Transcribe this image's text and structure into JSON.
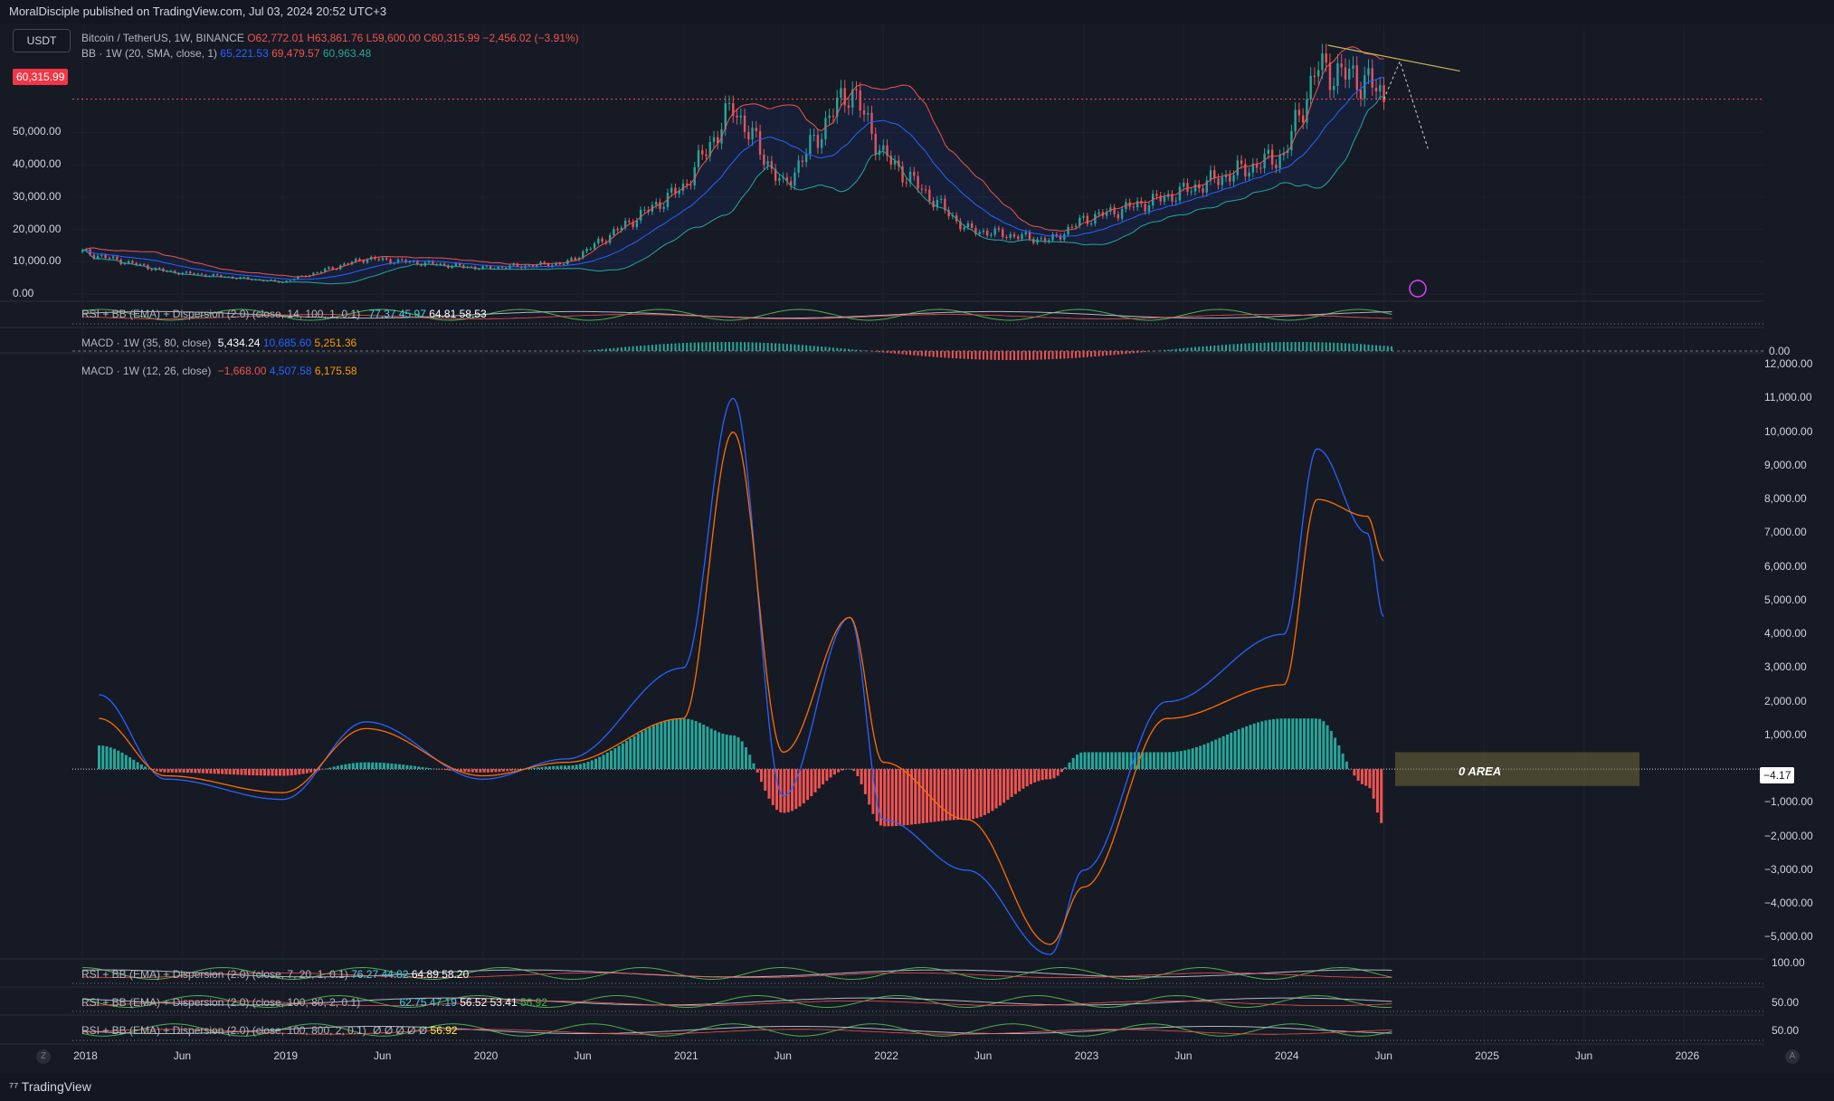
{
  "header": {
    "published": "MoralDisciple published on TradingView.com, Jul 03, 2024 20:52 UTC+3"
  },
  "symbol_box": "USDT",
  "main_legend": {
    "title": "Bitcoin / TetherUS, 1W, BINANCE",
    "o_label": "O",
    "o": "62,772.01",
    "h_label": "H",
    "h": "63,861.76",
    "l_label": "L",
    "l": "59,600.00",
    "c_label": "C",
    "c": "60,315.99",
    "change": "−2,456.02 (−3.91%)",
    "bb_title": "BB · 1W (20, SMA, close, 1)",
    "bb_basis": "65,221.53",
    "bb_upper": "69,479.57",
    "bb_lower": "60,963.48"
  },
  "last_price_tag": "60,315.99",
  "price_axis": [
    "50,000.00",
    "40,000.00",
    "30,000.00",
    "20,000.00",
    "10,000.00",
    "0.00"
  ],
  "rsi1": {
    "title": "RSI + BB (EMA) + Dispersion (2.0) (close, 14, 100, 1, 0.1)",
    "v1": "77.37",
    "v2": "45.97",
    "v3": "64.81",
    "v4": "58.53"
  },
  "macd_small": {
    "title": "MACD · 1W (35, 80, close)",
    "v1": "5,434.24",
    "v2": "10,685.60",
    "v3": "5,251.36",
    "axis": "0.00"
  },
  "macd_big": {
    "title": "MACD · 1W (12, 26, close)",
    "hist": "−1,668.00",
    "macd": "4,507.58",
    "signal": "6,175.58"
  },
  "macd_axis": [
    "12,000.00",
    "11,000.00",
    "10,000.00",
    "9,000.00",
    "8,000.00",
    "7,000.00",
    "6,000.00",
    "5,000.00",
    "4,000.00",
    "3,000.00",
    "2,000.00",
    "1,000.00",
    "−1,000.00",
    "−2,000.00",
    "−3,000.00",
    "−4,000.00",
    "−5,000.00"
  ],
  "macd_value_tag": "−4.17",
  "zero_area_label": "0 AREA",
  "rsi2": {
    "title": "RSI + BB (EMA) + Dispersion (2.0) (close, 7, 20, 1, 0.1)",
    "v1": "76.27",
    "v2": "44.82",
    "v3": "64.89",
    "v4": "58.20",
    "axis": "100.00"
  },
  "rsi3": {
    "title": "RSI + BB (EMA) + Dispersion (2.0) (close, 100, 80, 2, 0.1)",
    "v1": "62.75",
    "v2": "47.19",
    "v3": "56.52",
    "v4": "53.41",
    "v5": "56.92",
    "axis": "50.00"
  },
  "rsi4": {
    "title": "RSI + BB (EMA) + Dispersion (2.0) (close, 100, 800, 2, 0.1)",
    "v0": "Ø Ø Ø Ø Ø",
    "v5": "56.92",
    "axis": "50.00"
  },
  "time_axis": [
    "2018",
    "Jun",
    "2019",
    "Jun",
    "2020",
    "Jun",
    "2021",
    "Jun",
    "2022",
    "Jun",
    "2023",
    "Jun",
    "2024",
    "Jun",
    "2025",
    "Jun",
    "2026"
  ],
  "footer": {
    "brand": "TradingView",
    "left_btn": "Z",
    "right_btn": "A"
  },
  "colors": {
    "up": "#26a69a",
    "down": "#ef5350",
    "macd": "#2962ff",
    "signal": "#ff6d00",
    "bb": "#2962ff",
    "background": "#161a25"
  },
  "chart_data": [
    {
      "type": "candlestick",
      "title": "Bitcoin / TetherUS, 1W, BINANCE",
      "x": [
        "2018-01",
        "2018-06",
        "2019-01",
        "2019-06",
        "2020-01",
        "2020-06",
        "2021-01",
        "2021-04",
        "2021-07",
        "2021-11",
        "2022-01",
        "2022-06",
        "2022-11",
        "2023-01",
        "2023-06",
        "2024-01",
        "2024-03",
        "2024-06",
        "2024-07"
      ],
      "close": [
        13000,
        7000,
        3700,
        11000,
        8000,
        9500,
        33000,
        58000,
        33000,
        64000,
        43000,
        20000,
        16500,
        23000,
        30000,
        43000,
        70000,
        66000,
        60316
      ],
      "ylim": [
        0,
        70000
      ],
      "series": [
        {
          "name": "BB basis",
          "value_last": 65221.53
        },
        {
          "name": "BB upper",
          "value_last": 69479.57
        },
        {
          "name": "BB lower",
          "value_last": 60963.48
        }
      ]
    },
    {
      "type": "bar",
      "title": "MACD · 1W (12, 26, close)",
      "x": [
        "2018-02",
        "2018-06",
        "2019-01",
        "2019-06",
        "2020-01",
        "2020-06",
        "2021-01",
        "2021-04",
        "2021-07",
        "2021-11",
        "2022-01",
        "2022-06",
        "2022-11",
        "2023-01",
        "2023-06",
        "2024-01",
        "2024-03",
        "2024-06",
        "2024-07"
      ],
      "series": [
        {
          "name": "MACD",
          "values": [
            2200,
            -300,
            -900,
            1400,
            -300,
            300,
            3000,
            11000,
            -800,
            4500,
            -1500,
            -3000,
            -5500,
            -3000,
            2000,
            4000,
            9500,
            7000,
            4507.58
          ]
        },
        {
          "name": "Signal",
          "values": [
            1500,
            -200,
            -700,
            1200,
            -200,
            200,
            1500,
            10000,
            500,
            4500,
            200,
            -1500,
            -5200,
            -3500,
            1500,
            2500,
            8000,
            7500,
            6175.58
          ]
        },
        {
          "name": "Histogram",
          "values": [
            700,
            -100,
            -200,
            200,
            -100,
            100,
            1500,
            1000,
            -1300,
            0,
            -1700,
            -1500,
            -300,
            500,
            500,
            1500,
            1500,
            -500,
            -1668.0
          ]
        }
      ],
      "ylim": [
        -5500,
        12000
      ]
    }
  ]
}
